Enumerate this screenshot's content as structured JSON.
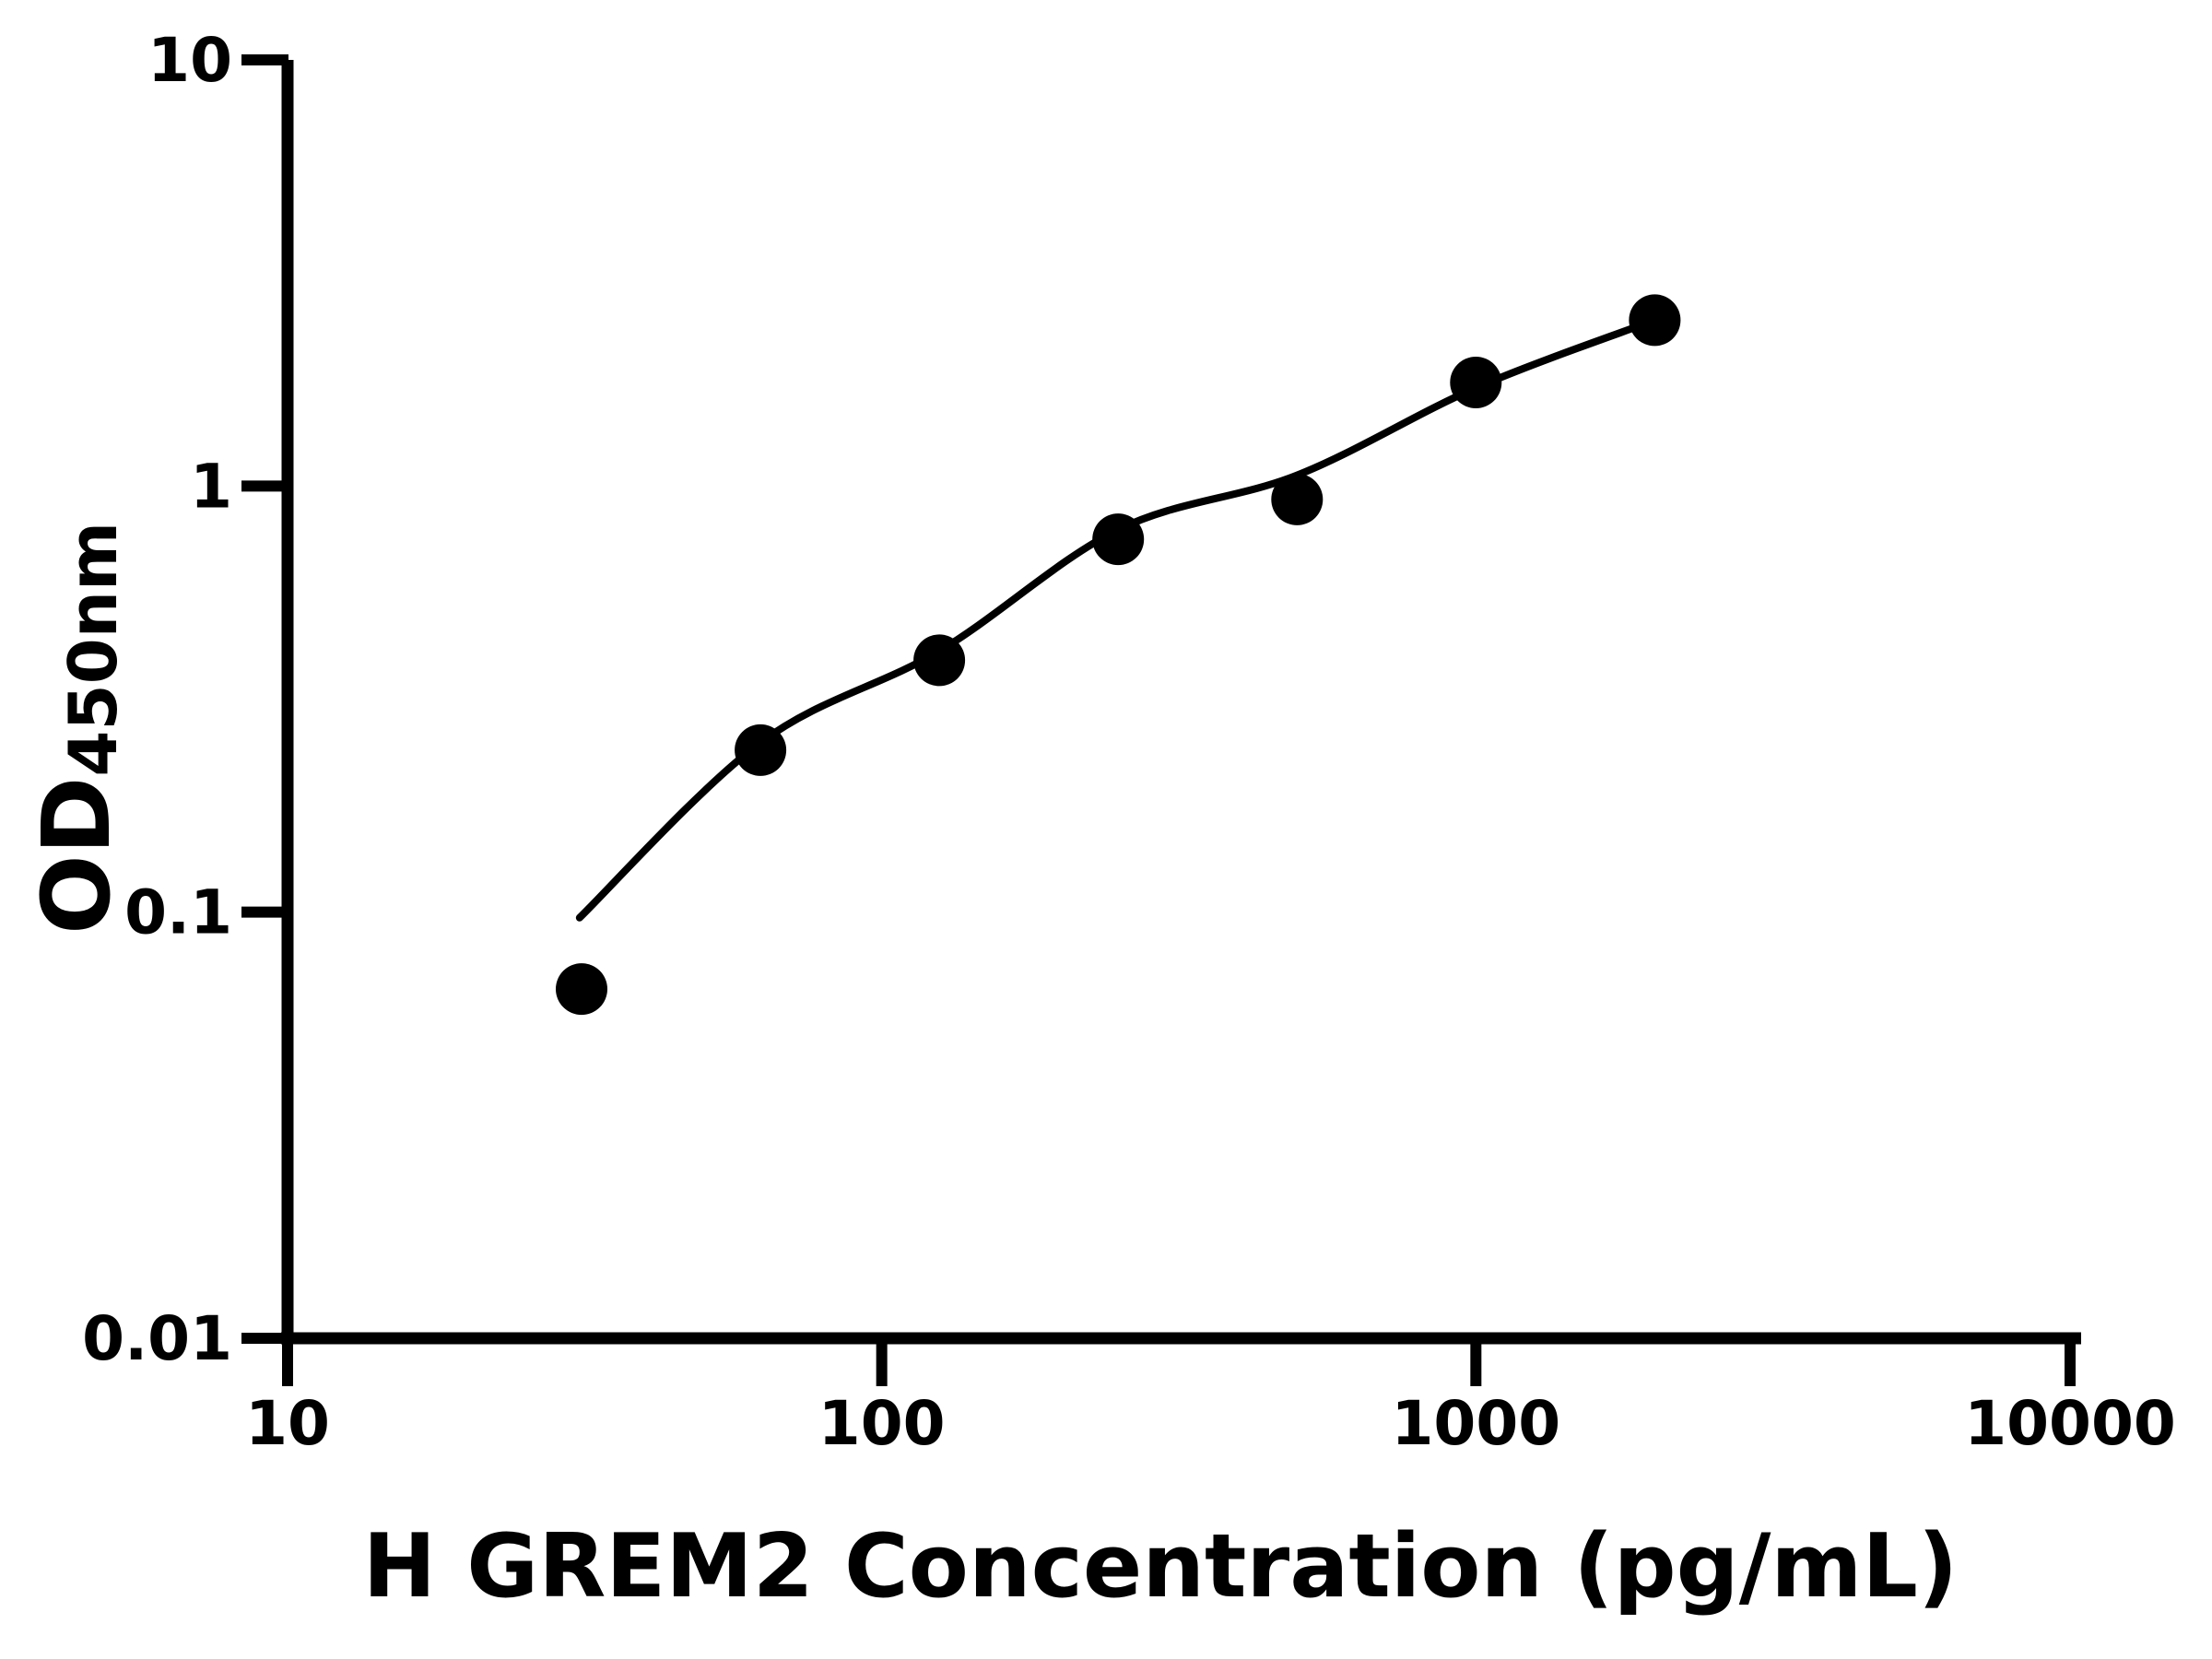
{
  "figure": {
    "background_color": "#ffffff",
    "ink_color": "#000000"
  },
  "chart_data": {
    "type": "scatter",
    "title": "",
    "xlabel": "H GREM2 Concentration (pg/mL)",
    "ylabel": "OD450nm",
    "ylabel_main": "OD",
    "ylabel_subscript": "450nm",
    "x_scale": "log10",
    "y_scale": "log10",
    "xlim": [
      10,
      10000
    ],
    "ylim": [
      0.01,
      10
    ],
    "x_tick_values": [
      10,
      100,
      1000,
      10000
    ],
    "x_tick_labels": [
      "10",
      "100",
      "1000",
      "10000"
    ],
    "y_tick_values": [
      10,
      1,
      0.1,
      0.01
    ],
    "y_tick_labels": [
      "10",
      "1",
      "0.1",
      "0.01"
    ],
    "grid": false,
    "legend": "none",
    "marker": "filled-circle",
    "marker_color": "#000000",
    "line_color": "#000000",
    "points": [
      {
        "x": 31.25,
        "y": 0.066
      },
      {
        "x": 62.5,
        "y": 0.24
      },
      {
        "x": 125,
        "y": 0.39
      },
      {
        "x": 250,
        "y": 0.75
      },
      {
        "x": 500,
        "y": 0.93
      },
      {
        "x": 1000,
        "y": 1.75
      },
      {
        "x": 2000,
        "y": 2.45
      }
    ],
    "fit_curve_points": [
      {
        "x": 31,
        "y": 0.097
      },
      {
        "x": 62.5,
        "y": 0.25
      },
      {
        "x": 125,
        "y": 0.41
      },
      {
        "x": 250,
        "y": 0.79
      },
      {
        "x": 500,
        "y": 1.06
      },
      {
        "x": 1000,
        "y": 1.7
      },
      {
        "x": 2000,
        "y": 2.45
      }
    ]
  }
}
